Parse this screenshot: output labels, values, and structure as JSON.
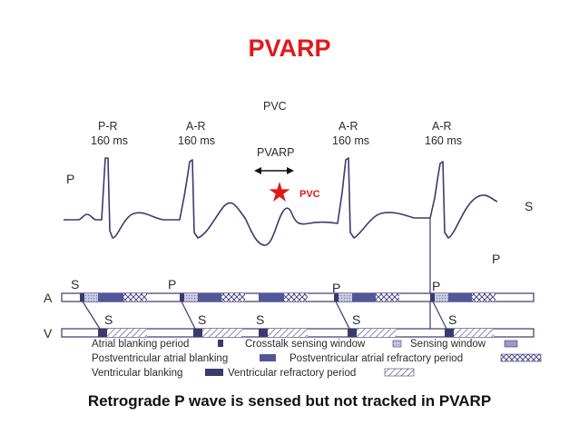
{
  "title": "PVARP",
  "caption": "Retrograde P wave is sensed but not tracked in PVARP",
  "top_labels": {
    "pvc": "PVC",
    "pvarp": "PVARP",
    "intervals": [
      {
        "name": "P-R",
        "value": "160 ms"
      },
      {
        "name": "A-R",
        "value": "160 ms"
      },
      {
        "name": "A-R",
        "value": "160 ms"
      },
      {
        "name": "A-R",
        "value": "160 ms"
      }
    ]
  },
  "wave_labels": {
    "p_left": "P",
    "s_right": "S",
    "p_right": "P",
    "pvc_marker": "PVC"
  },
  "channels": {
    "atrial": "A",
    "ventricular": "V",
    "atrial_events": [
      "S",
      "P",
      "P",
      "P"
    ],
    "ventricular_events": [
      "S",
      "S",
      "S",
      "S",
      "S"
    ]
  },
  "legend": {
    "atrial_blanking": "Atrial blanking period",
    "crosstalk": "Crosstalk sensing window",
    "sensing": "Sensing window",
    "pv_atrial_blanking": "Postventricular atrial blanking",
    "pvarp": "Postventricular atrial refractory period",
    "ventricular_blanking": "Ventricular blanking",
    "vrp": "Ventricular refractory period"
  },
  "colors": {
    "title": "#e0191b",
    "ink": "#3a3a6e",
    "marker": "#e0191b"
  }
}
